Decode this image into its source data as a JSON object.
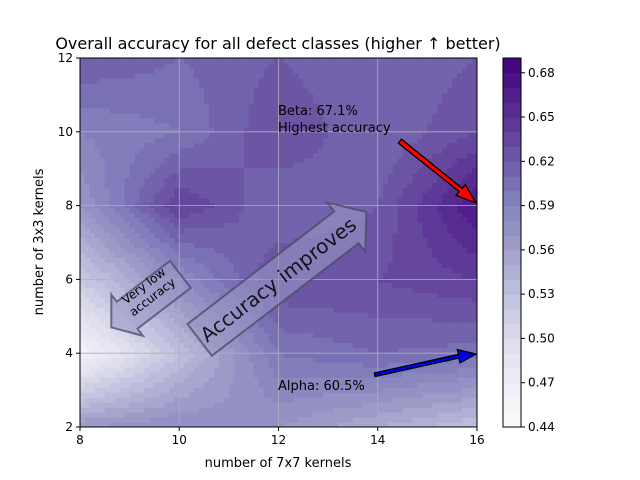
{
  "chart_data": {
    "type": "heatmap",
    "title": "Overall accuracy for all defect classes (higher ↑ better)",
    "xlabel": "number of 7x7 kernels",
    "ylabel": "number of 3x3 kernels",
    "xlim": [
      8,
      16
    ],
    "ylim": [
      2,
      12
    ],
    "xticks": [
      8,
      10,
      12,
      14,
      16
    ],
    "yticks": [
      2,
      4,
      6,
      8,
      10,
      12
    ],
    "grid": true,
    "colormap": "Purples",
    "colorbar": {
      "range": [
        0.44,
        0.69
      ],
      "ticks": [
        "0.44",
        "0.47",
        "0.50",
        "0.53",
        "0.56",
        "0.59",
        "0.62",
        "0.65",
        "0.68"
      ]
    },
    "x": [
      8,
      10,
      12,
      14,
      16
    ],
    "y": [
      2,
      4,
      6,
      8,
      10,
      12
    ],
    "z": [
      [
        0.57,
        0.58,
        0.57,
        0.55,
        0.53
      ],
      [
        0.46,
        0.53,
        0.6,
        0.61,
        0.605
      ],
      [
        0.52,
        0.58,
        0.63,
        0.63,
        0.64
      ],
      [
        0.57,
        0.64,
        0.61,
        0.62,
        0.671
      ],
      [
        0.59,
        0.6,
        0.63,
        0.61,
        0.63
      ],
      [
        0.62,
        0.61,
        0.62,
        0.61,
        0.62
      ]
    ],
    "annotations": [
      {
        "text": "Beta: 67.1%\nHighest accuracy",
        "point": [
          16,
          8
        ],
        "text_at": [
          12,
          10.3
        ],
        "arrow_color": "#ff0000"
      },
      {
        "text": "Alpha: 60.5%",
        "point": [
          16,
          4
        ],
        "text_at": [
          12,
          3.0
        ],
        "arrow_color": "#0000ee"
      },
      {
        "text": "Accuracy improves",
        "direction": "up-right"
      },
      {
        "text": "Very low\naccuracy",
        "direction": "down-left"
      }
    ]
  }
}
